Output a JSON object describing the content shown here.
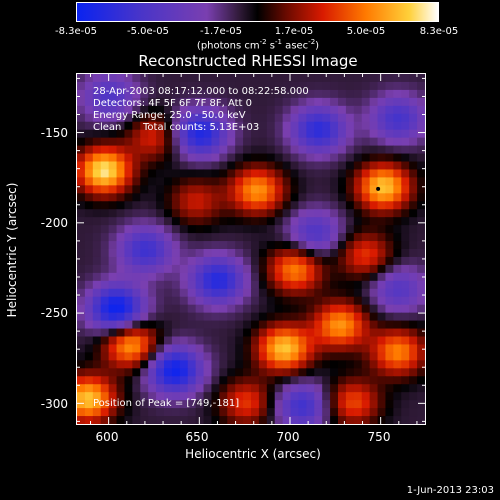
{
  "chart_data": {
    "type": "heatmap",
    "title": "Reconstructed RHESSI Image",
    "xlabel": "Heliocentric X (arcsec)",
    "ylabel": "Heliocentric Y (arcsec)",
    "xlim": [
      582,
      775
    ],
    "ylim": [
      -312,
      -117
    ],
    "xticks": [
      600,
      650,
      700,
      750
    ],
    "yticks": [
      -150,
      -200,
      -250,
      -300
    ],
    "colorbar": {
      "ticks": [
        "-8.3e-05",
        "-5.0e-05",
        "-1.7e-05",
        "1.7e-05",
        "5.0e-05",
        "8.3e-05"
      ],
      "unit": "(photons cm",
      "unit_exp1": "-2",
      "unit_mid": " s",
      "unit_exp2": "-1",
      "unit_end": " asec",
      "unit_exp3": "-2",
      "unit_close": ")",
      "min": -8.3e-05,
      "max": 8.3e-05
    },
    "annotations": [
      "28-Apr-2003 08:17:12.000 to 08:22:58.000",
      "Detectors: 4F 5F 6F 7F 8F, Att 0",
      "Energy Range: 25.0 - 50.0 keV",
      "Clean",
      "Total counts: 5.13E+03"
    ],
    "peak_text": "Position of Peak = [749,-181]",
    "peak": [
      749,
      -181
    ],
    "blobs": [
      {
        "x": 597,
        "y": -171,
        "v": 1.0
      },
      {
        "x": 625,
        "y": -152,
        "v": 0.45
      },
      {
        "x": 682,
        "y": -182,
        "v": 0.75
      },
      {
        "x": 703,
        "y": -226,
        "v": 0.7
      },
      {
        "x": 752,
        "y": -180,
        "v": 0.9
      },
      {
        "x": 612,
        "y": -268,
        "v": 0.8
      },
      {
        "x": 588,
        "y": -298,
        "v": 0.9
      },
      {
        "x": 697,
        "y": -270,
        "v": 0.9
      },
      {
        "x": 728,
        "y": -257,
        "v": 0.75
      },
      {
        "x": 760,
        "y": -272,
        "v": 0.7
      },
      {
        "x": 742,
        "y": -218,
        "v": 0.5
      },
      {
        "x": 648,
        "y": -188,
        "v": 0.4
      },
      {
        "x": 676,
        "y": -300,
        "v": 0.5
      },
      {
        "x": 735,
        "y": -300,
        "v": 0.55
      },
      {
        "x": 660,
        "y": -232,
        "v": -0.75
      },
      {
        "x": 650,
        "y": -150,
        "v": -0.8
      },
      {
        "x": 620,
        "y": -215,
        "v": -0.6
      },
      {
        "x": 604,
        "y": -248,
        "v": -0.95
      },
      {
        "x": 636,
        "y": -282,
        "v": -0.9
      },
      {
        "x": 716,
        "y": -148,
        "v": -0.7
      },
      {
        "x": 714,
        "y": -206,
        "v": -0.5
      },
      {
        "x": 760,
        "y": -237,
        "v": -0.45
      },
      {
        "x": 707,
        "y": -302,
        "v": -0.6
      },
      {
        "x": 760,
        "y": -142,
        "v": -0.55
      },
      {
        "x": 600,
        "y": -130,
        "v": -0.5
      }
    ]
  },
  "footer_date": "1-Jun-2013 23:03"
}
